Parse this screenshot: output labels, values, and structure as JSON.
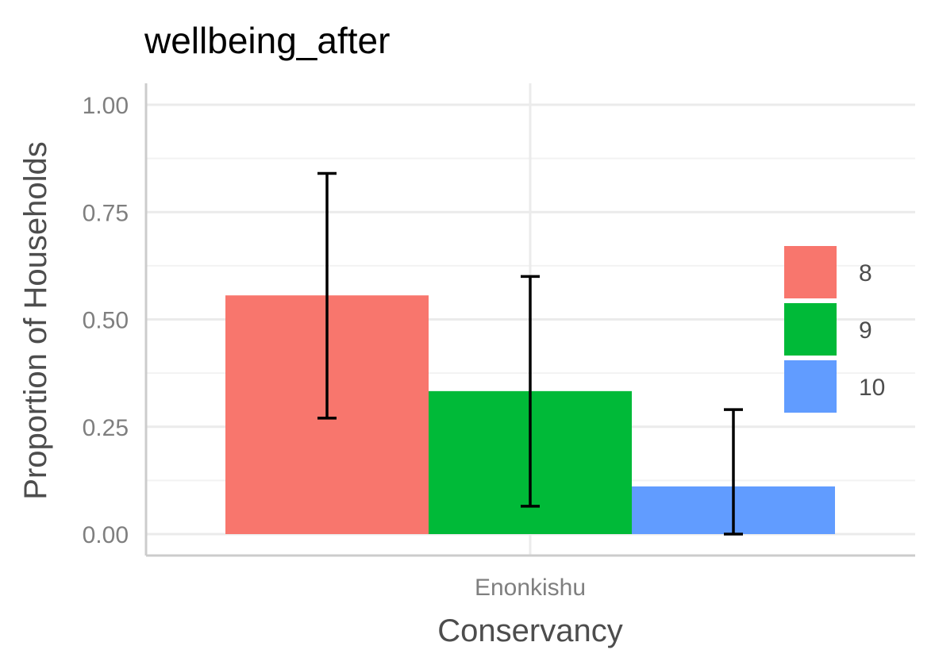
{
  "chart_data": {
    "type": "bar",
    "title": "wellbeing_after",
    "xlabel": "Conservancy",
    "ylabel": "Proportion of Households",
    "categories": [
      "Enonkishu"
    ],
    "ylim": [
      0,
      1.05
    ],
    "yticks": [
      "0.00",
      "0.25",
      "0.50",
      "0.75",
      "1.00"
    ],
    "ytick_values": [
      0,
      0.25,
      0.5,
      0.75,
      1.0
    ],
    "grid": true,
    "legend_position": "right",
    "series": [
      {
        "name": "8",
        "values": [
          0.556
        ],
        "error_low": [
          0.27
        ],
        "error_high": [
          0.84
        ],
        "color": "#F8766D"
      },
      {
        "name": "9",
        "values": [
          0.333
        ],
        "error_low": [
          0.065
        ],
        "error_high": [
          0.6
        ],
        "color": "#00BA38"
      },
      {
        "name": "10",
        "values": [
          0.111
        ],
        "error_low": [
          0.0
        ],
        "error_high": [
          0.29
        ],
        "color": "#619CFF"
      }
    ]
  }
}
